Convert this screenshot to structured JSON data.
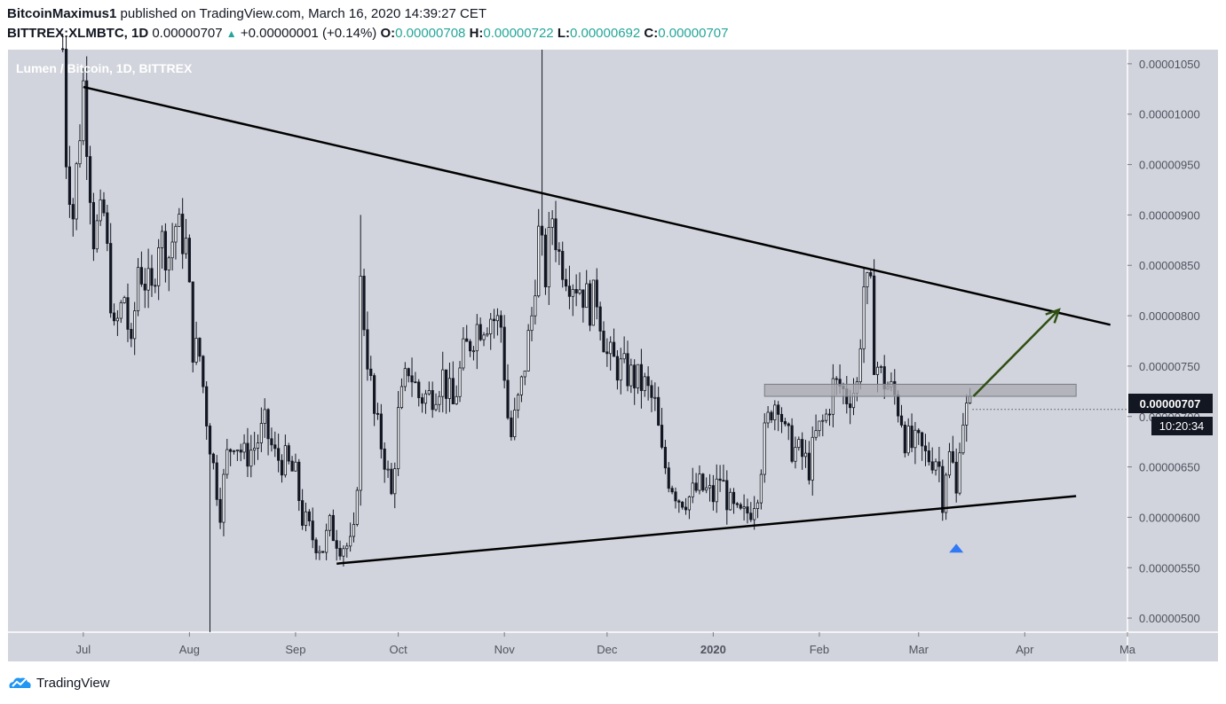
{
  "header": {
    "author": "BitcoinMaximus1",
    "published_text": "published on TradingView.com, March 16, 2020 14:39:27 CET",
    "symbol": "BITTREX:XLMBTC, 1D",
    "last": "0.00000707",
    "change": "+0.00000001 (+0.14%)",
    "o_label": "O:",
    "o_value": "0.00000708",
    "h_label": "H:",
    "h_value": "0.00000722",
    "l_label": "L:",
    "l_value": "0.00000692",
    "c_label": "C:",
    "c_value": "0.00000707"
  },
  "watermark": "Lumen / Bitcoin, 1D, BITTREX",
  "price_tag": "0.00000707",
  "countdown": "10:20:34",
  "footer": {
    "brand": "TradingView"
  },
  "colors": {
    "plot_bg": "#d1d4dc",
    "candle": "#131722",
    "arrow": "#2f4f13",
    "resistance_box": "#a9abb2",
    "marker": "#3179f5",
    "price_tag_bg": "#131722"
  },
  "chart_data": {
    "type": "candlestick",
    "y_ticks": [
      "0.00001050",
      "0.00001000",
      "0.00000950",
      "0.00000900",
      "0.00000850",
      "0.00000800",
      "0.00000750",
      "0.00000700",
      "0.00000650",
      "0.00000600",
      "0.00000550",
      "0.00000500"
    ],
    "y_range": [
      4.86e-06,
      1.064e-05
    ],
    "x_ticks": [
      {
        "label": "Jul",
        "date": "2019-07-01"
      },
      {
        "label": "Aug",
        "date": "2019-08-01"
      },
      {
        "label": "Sep",
        "date": "2019-09-01"
      },
      {
        "label": "Oct",
        "date": "2019-10-01"
      },
      {
        "label": "Nov",
        "date": "2019-11-01"
      },
      {
        "label": "Dec",
        "date": "2019-12-01"
      },
      {
        "label": "2020",
        "date": "2020-01-01",
        "bold": true
      },
      {
        "label": "Feb",
        "date": "2020-02-01"
      },
      {
        "label": "Mar",
        "date": "2020-03-01"
      },
      {
        "label": "Apr",
        "date": "2020-04-01"
      },
      {
        "label": "Ma",
        "date": "2020-05-01"
      }
    ],
    "x_range": [
      "2019-06-09",
      "2020-05-01"
    ],
    "price_path": [
      [
        "2019-06-25",
        1.065e-05
      ],
      [
        "2019-06-26",
        9.6e-06
      ],
      [
        "2019-06-28",
        9e-06
      ],
      [
        "2019-07-01",
        1.03e-05
      ],
      [
        "2019-07-04",
        8.8e-06
      ],
      [
        "2019-07-07",
        9e-06
      ],
      [
        "2019-07-10",
        7.8e-06
      ],
      [
        "2019-07-13",
        8.2e-06
      ],
      [
        "2019-07-15",
        7.6e-06
      ],
      [
        "2019-07-17",
        8.5e-06
      ],
      [
        "2019-07-21",
        8.2e-06
      ],
      [
        "2019-07-23",
        8.8e-06
      ],
      [
        "2019-07-26",
        8.6e-06
      ],
      [
        "2019-07-28",
        8.9e-06
      ],
      [
        "2019-07-31",
        8.7e-06
      ],
      [
        "2019-08-02",
        7.7e-06
      ],
      [
        "2019-08-04",
        7.6e-06
      ],
      [
        "2019-08-06",
        7e-06
      ],
      [
        "2019-08-08",
        6.5e-06
      ],
      [
        "2019-08-10",
        6.1e-06
      ],
      [
        "2019-08-12",
        6.6e-06
      ],
      [
        "2019-08-14",
        6.8e-06
      ],
      [
        "2019-08-17",
        6.6e-06
      ],
      [
        "2019-08-20",
        6.7e-06
      ],
      [
        "2019-08-23",
        6.9e-06
      ],
      [
        "2019-08-26",
        6.6e-06
      ],
      [
        "2019-08-29",
        6.55e-06
      ],
      [
        "2019-09-01",
        6.4e-06
      ],
      [
        "2019-09-03",
        6e-06
      ],
      [
        "2019-09-06",
        5.8e-06
      ],
      [
        "2019-09-09",
        5.7e-06
      ],
      [
        "2019-09-11",
        5.9e-06
      ],
      [
        "2019-09-14",
        5.75e-06
      ],
      [
        "2019-09-17",
        5.7e-06
      ],
      [
        "2019-09-18",
        5.8e-06
      ],
      [
        "2019-09-19",
        6.4e-06
      ],
      [
        "2019-09-20",
        8.3e-06
      ],
      [
        "2019-09-22",
        7.6e-06
      ],
      [
        "2019-09-24",
        7e-06
      ],
      [
        "2019-09-27",
        6.6e-06
      ],
      [
        "2019-09-29",
        6.2e-06
      ],
      [
        "2019-10-01",
        7e-06
      ],
      [
        "2019-10-04",
        7.5e-06
      ],
      [
        "2019-10-07",
        7.2e-06
      ],
      [
        "2019-10-10",
        7.2e-06
      ],
      [
        "2019-10-14",
        7.4e-06
      ],
      [
        "2019-10-17",
        7.1e-06
      ],
      [
        "2019-10-20",
        7.6e-06
      ],
      [
        "2019-10-24",
        7.9e-06
      ],
      [
        "2019-10-28",
        8e-06
      ],
      [
        "2019-10-31",
        7.9e-06
      ],
      [
        "2019-11-02",
        7e-06
      ],
      [
        "2019-11-03",
        6.8e-06
      ],
      [
        "2019-11-06",
        7.3e-06
      ],
      [
        "2019-11-09",
        8e-06
      ],
      [
        "2019-11-11",
        8.8e-06
      ],
      [
        "2019-11-13",
        8.4e-06
      ],
      [
        "2019-11-15",
        9e-06
      ],
      [
        "2019-11-17",
        8.6e-06
      ],
      [
        "2019-11-20",
        8.4e-06
      ],
      [
        "2019-11-23",
        8.3e-06
      ],
      [
        "2019-11-26",
        8.1e-06
      ],
      [
        "2019-11-28",
        8.2e-06
      ],
      [
        "2019-12-01",
        7.6e-06
      ],
      [
        "2019-12-04",
        7.5e-06
      ],
      [
        "2019-12-08",
        7.4e-06
      ],
      [
        "2019-12-12",
        7.3e-06
      ],
      [
        "2019-12-15",
        7.1e-06
      ],
      [
        "2019-12-17",
        6.6e-06
      ],
      [
        "2019-12-19",
        6.4e-06
      ],
      [
        "2019-12-22",
        6.2e-06
      ],
      [
        "2019-12-25",
        6.2e-06
      ],
      [
        "2019-12-28",
        6.3e-06
      ],
      [
        "2020-01-01",
        6.2e-06
      ],
      [
        "2020-01-03",
        6.4e-06
      ],
      [
        "2020-01-06",
        6.1e-06
      ],
      [
        "2020-01-08",
        6e-06
      ],
      [
        "2020-01-10",
        6e-06
      ],
      [
        "2020-01-12",
        6.1e-06
      ],
      [
        "2020-01-14",
        6.3e-06
      ],
      [
        "2020-01-16",
        6.8e-06
      ],
      [
        "2020-01-18",
        7.1e-06
      ],
      [
        "2020-01-20",
        7.2e-06
      ],
      [
        "2020-01-22",
        6.8e-06
      ],
      [
        "2020-01-24",
        6.7e-06
      ],
      [
        "2020-01-27",
        6.6e-06
      ],
      [
        "2020-01-29",
        6.5e-06
      ],
      [
        "2020-01-31",
        6.8e-06
      ],
      [
        "2020-02-03",
        7e-06
      ],
      [
        "2020-02-05",
        7.3e-06
      ],
      [
        "2020-02-07",
        7.3e-06
      ],
      [
        "2020-02-09",
        7.2e-06
      ],
      [
        "2020-02-12",
        7.3e-06
      ],
      [
        "2020-02-13",
        7.8e-06
      ],
      [
        "2020-02-14",
        8.3e-06
      ],
      [
        "2020-02-16",
        8.2e-06
      ],
      [
        "2020-02-17",
        7.6e-06
      ],
      [
        "2020-02-19",
        7.4e-06
      ],
      [
        "2020-02-21",
        7.3e-06
      ],
      [
        "2020-02-23",
        7.2e-06
      ],
      [
        "2020-02-25",
        7e-06
      ],
      [
        "2020-02-26",
        6.8e-06
      ],
      [
        "2020-02-28",
        6.7e-06
      ],
      [
        "2020-03-01",
        6.7e-06
      ],
      [
        "2020-03-03",
        6.6e-06
      ],
      [
        "2020-03-06",
        6.6e-06
      ],
      [
        "2020-03-07",
        6.5e-06
      ],
      [
        "2020-03-08",
        6.2e-06
      ],
      [
        "2020-03-09",
        6.5e-06
      ],
      [
        "2020-03-10",
        6.6e-06
      ],
      [
        "2020-03-11",
        6.5e-06
      ],
      [
        "2020-03-12",
        6.2e-06
      ],
      [
        "2020-03-13",
        6.8e-06
      ],
      [
        "2020-03-14",
        7e-06
      ],
      [
        "2020-03-15",
        7.05e-06
      ],
      [
        "2020-03-16",
        7.07e-06
      ]
    ],
    "spikes": [
      {
        "date": "2019-08-07",
        "low": 4.86e-06
      },
      {
        "date": "2019-11-12",
        "high": 1.064e-05
      },
      {
        "date": "2019-09-20",
        "high": 9e-06
      }
    ],
    "annotations": {
      "upper_trendline": [
        [
          "2019-07-01",
          1.027e-05
        ],
        [
          "2020-04-26",
          7.91e-06
        ]
      ],
      "lower_trendline": [
        [
          "2019-09-13",
          5.54e-06
        ],
        [
          "2020-04-16",
          6.21e-06
        ]
      ],
      "resistance_box": {
        "from": "2020-01-16",
        "to": "2020-04-16",
        "top": 7.32e-06,
        "bottom": 7.2e-06
      },
      "target_arrow": [
        [
          "2020-03-17",
          7.2e-06
        ],
        [
          "2020-04-11",
          8.06e-06
        ]
      ],
      "marker": {
        "date": "2020-03-12",
        "price": 5.72e-06
      }
    },
    "current_price": 7.07e-06
  }
}
